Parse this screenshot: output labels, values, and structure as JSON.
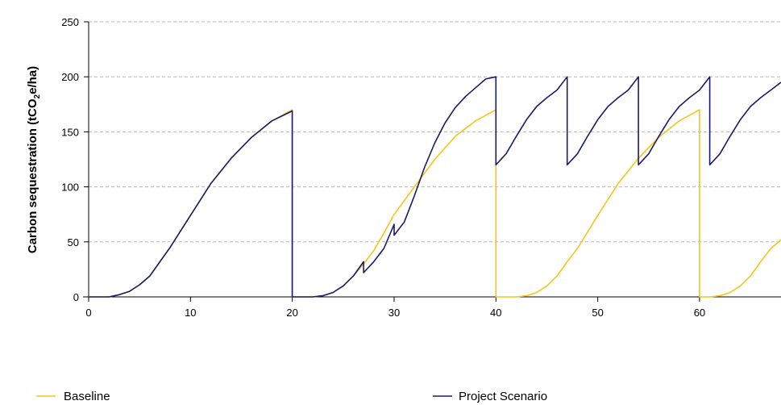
{
  "chart_data": {
    "type": "line",
    "title": "",
    "xlabel": "",
    "ylabel": {
      "prefix": "Carbon sequestration (tCO",
      "subscript": "2",
      "suffix": "e/ha)"
    },
    "xlim": [
      0,
      68
    ],
    "ylim": [
      0,
      250
    ],
    "xticks": [
      0,
      10,
      20,
      30,
      40,
      50,
      60
    ],
    "yticks": [
      0,
      50,
      100,
      150,
      200,
      250
    ],
    "grid": "horizontal-dashed",
    "legend_position": "bottom",
    "series": [
      {
        "name": "Baseline",
        "color": "#F5C518",
        "points": [
          [
            0,
            0
          ],
          [
            2,
            0
          ],
          [
            3,
            2
          ],
          [
            4,
            5
          ],
          [
            5,
            11
          ],
          [
            6,
            19
          ],
          [
            8,
            45
          ],
          [
            10,
            74
          ],
          [
            12,
            103
          ],
          [
            14,
            126
          ],
          [
            16,
            145
          ],
          [
            18,
            160
          ],
          [
            20,
            170
          ],
          [
            20,
            0
          ],
          [
            22,
            0
          ],
          [
            23,
            1
          ],
          [
            24,
            4
          ],
          [
            25,
            10
          ],
          [
            26,
            19
          ],
          [
            27,
            30
          ],
          [
            28,
            42
          ],
          [
            29,
            58
          ],
          [
            30,
            75
          ],
          [
            32,
            100
          ],
          [
            34,
            125
          ],
          [
            36,
            146
          ],
          [
            38,
            160
          ],
          [
            40,
            170
          ],
          [
            40,
            0
          ],
          [
            41,
            0
          ],
          [
            42,
            0
          ],
          [
            43,
            1
          ],
          [
            44,
            4
          ],
          [
            45,
            10
          ],
          [
            46,
            19
          ],
          [
            47,
            32
          ],
          [
            48,
            44
          ],
          [
            50,
            74
          ],
          [
            52,
            103
          ],
          [
            54,
            126
          ],
          [
            56,
            145
          ],
          [
            58,
            160
          ],
          [
            60,
            170
          ],
          [
            60,
            0
          ],
          [
            61,
            0
          ],
          [
            62,
            1
          ],
          [
            63,
            4
          ],
          [
            64,
            10
          ],
          [
            65,
            19
          ],
          [
            66,
            32
          ],
          [
            67,
            44
          ],
          [
            68,
            52
          ]
        ]
      },
      {
        "name": "Project Scenario",
        "color": "#1A1A6E",
        "points": [
          [
            0,
            0
          ],
          [
            2,
            0
          ],
          [
            3,
            2
          ],
          [
            4,
            5
          ],
          [
            5,
            11
          ],
          [
            6,
            19
          ],
          [
            8,
            45
          ],
          [
            10,
            74
          ],
          [
            12,
            103
          ],
          [
            14,
            126
          ],
          [
            16,
            145
          ],
          [
            18,
            160
          ],
          [
            20,
            169
          ],
          [
            20,
            0
          ],
          [
            22,
            0
          ],
          [
            23,
            1
          ],
          [
            24,
            4
          ],
          [
            25,
            10
          ],
          [
            26,
            19
          ],
          [
            27,
            32
          ],
          [
            27,
            22
          ],
          [
            28,
            32
          ],
          [
            29,
            44
          ],
          [
            30,
            66
          ],
          [
            30,
            56
          ],
          [
            31,
            68
          ],
          [
            32,
            92
          ],
          [
            33,
            118
          ],
          [
            34,
            140
          ],
          [
            35,
            158
          ],
          [
            36,
            172
          ],
          [
            37,
            182
          ],
          [
            38,
            190
          ],
          [
            39,
            198
          ],
          [
            40,
            200
          ],
          [
            40,
            120
          ],
          [
            41,
            130
          ],
          [
            42,
            146
          ],
          [
            43,
            161
          ],
          [
            44,
            173
          ],
          [
            45,
            181
          ],
          [
            46,
            188
          ],
          [
            47,
            200
          ],
          [
            47,
            120
          ],
          [
            48,
            130
          ],
          [
            49,
            146
          ],
          [
            50,
            161
          ],
          [
            51,
            173
          ],
          [
            52,
            181
          ],
          [
            53,
            188
          ],
          [
            54,
            200
          ],
          [
            54,
            120
          ],
          [
            55,
            130
          ],
          [
            56,
            146
          ],
          [
            57,
            161
          ],
          [
            58,
            173
          ],
          [
            59,
            181
          ],
          [
            60,
            188
          ],
          [
            61,
            200
          ],
          [
            61,
            120
          ],
          [
            62,
            130
          ],
          [
            63,
            146
          ],
          [
            64,
            161
          ],
          [
            65,
            173
          ],
          [
            66,
            181
          ],
          [
            67,
            188
          ],
          [
            68,
            195
          ]
        ]
      }
    ]
  }
}
